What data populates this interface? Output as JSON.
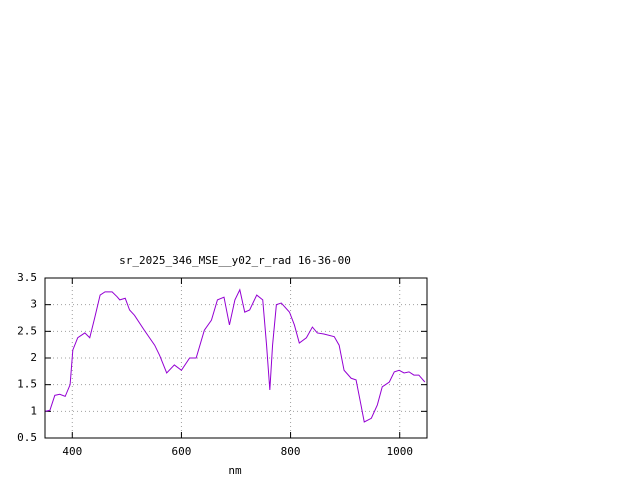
{
  "chart_data": {
    "type": "line",
    "title": "sr_2025_346_MSE__y02_r_rad 16-36-00",
    "x_label": "nm",
    "xlim": [
      350,
      1050
    ],
    "xticks": [
      400,
      600,
      800,
      1000
    ],
    "ylim": [
      0.5,
      3.5
    ],
    "yticks": [
      0.5,
      1,
      1.5,
      2,
      2.5,
      3,
      3.5
    ],
    "grid": true,
    "series": [
      {
        "color": "#9400d3",
        "x": [
          350,
          359,
          368,
          377,
          387,
          396,
          401,
          410,
          423,
          432,
          441,
          451,
          460,
          473,
          482,
          487,
          497,
          505,
          514,
          532,
          551,
          560,
          573,
          587,
          600,
          615,
          627,
          642,
          655,
          666,
          678,
          688,
          698,
          707,
          716,
          725,
          738,
          749,
          756,
          762,
          767,
          774,
          783,
          798,
          807,
          816,
          829,
          840,
          849,
          861,
          880,
          889,
          898,
          911,
          920,
          929,
          935,
          948,
          959,
          968,
          981,
          990,
          999,
          1008,
          1017,
          1026,
          1035,
          1046
        ],
        "values": [
          1.0,
          1.02,
          1.3,
          1.32,
          1.28,
          1.5,
          2.15,
          2.38,
          2.47,
          2.38,
          2.75,
          3.18,
          3.24,
          3.24,
          3.15,
          3.09,
          3.12,
          2.9,
          2.8,
          2.52,
          2.24,
          2.05,
          1.72,
          1.87,
          1.77,
          2.0,
          2.0,
          2.52,
          2.71,
          3.09,
          3.14,
          2.62,
          3.09,
          3.28,
          2.86,
          2.9,
          3.18,
          3.09,
          2.24,
          1.4,
          2.24,
          3.0,
          3.03,
          2.86,
          2.62,
          2.28,
          2.38,
          2.58,
          2.47,
          2.45,
          2.4,
          2.24,
          1.77,
          1.62,
          1.59,
          1.12,
          0.8,
          0.87,
          1.12,
          1.46,
          1.55,
          1.74,
          1.77,
          1.72,
          1.74,
          1.68,
          1.68,
          1.55
        ]
      }
    ]
  }
}
